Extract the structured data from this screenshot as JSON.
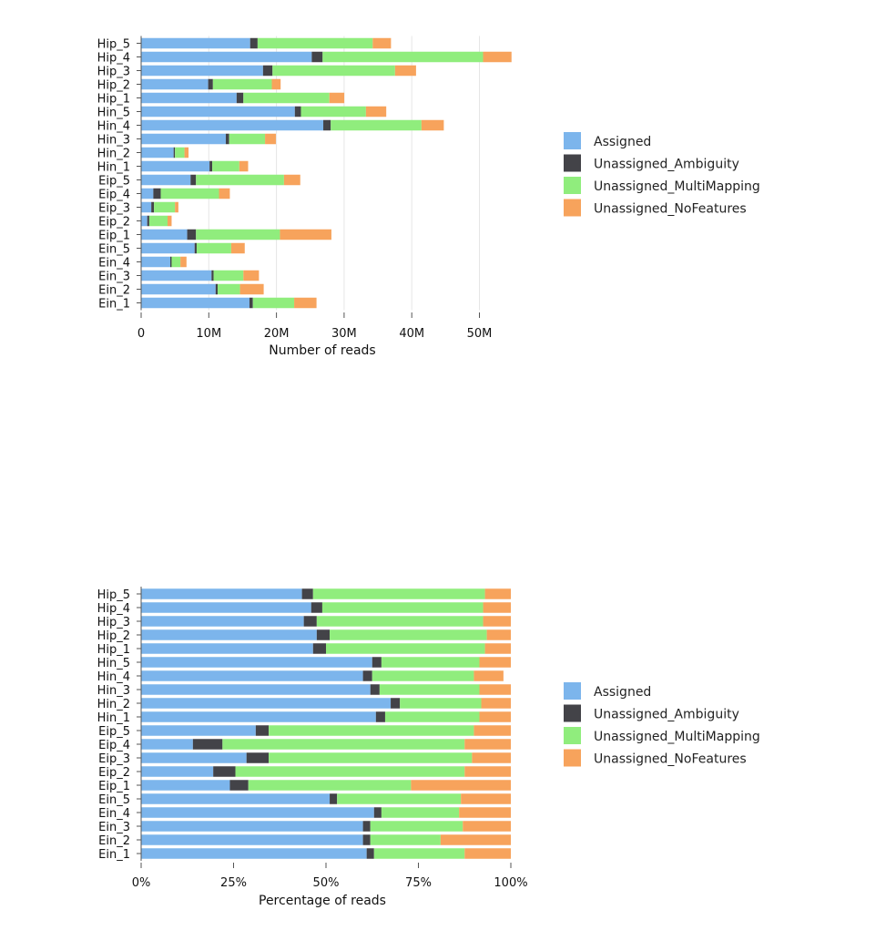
{
  "colors": {
    "Assigned": "#7cb5ec",
    "Unassigned_Ambiguity": "#434348",
    "Unassigned_MultiMapping": "#90ed7d",
    "Unassigned_NoFeatures": "#f7a35c",
    "grid": "#e6e6e6"
  },
  "chart_data": [
    {
      "type": "bar",
      "orientation": "horizontal",
      "stacked": true,
      "categories": [
        "Hip_5",
        "Hip_4",
        "Hip_3",
        "Hip_2",
        "Hip_1",
        "Hin_5",
        "Hin_4",
        "Hin_3",
        "Hin_2",
        "Hin_1",
        "Eip_5",
        "Eip_4",
        "Eip_3",
        "Eip_2",
        "Eip_1",
        "Ein_5",
        "Ein_4",
        "Ein_3",
        "Ein_2",
        "Ein_1"
      ],
      "series": [
        {
          "name": "Assigned",
          "values": [
            16.1,
            25.2,
            18.0,
            9.9,
            14.1,
            22.7,
            26.9,
            12.5,
            4.8,
            10.1,
            7.3,
            1.8,
            1.5,
            0.9,
            6.8,
            7.9,
            4.3,
            10.4,
            11.0,
            16.0
          ]
        },
        {
          "name": "Unassigned_Ambiguity",
          "values": [
            1.1,
            1.6,
            1.4,
            0.7,
            1.0,
            0.9,
            1.1,
            0.5,
            0.2,
            0.4,
            0.8,
            1.1,
            0.4,
            0.3,
            1.3,
            0.3,
            0.2,
            0.3,
            0.3,
            0.5
          ]
        },
        {
          "name": "Unassigned_MultiMapping",
          "values": [
            17.0,
            23.7,
            18.1,
            8.7,
            12.7,
            9.6,
            13.4,
            5.3,
            1.4,
            4.0,
            13.0,
            8.6,
            3.1,
            2.7,
            12.4,
            5.1,
            1.3,
            4.4,
            3.3,
            6.1
          ]
        },
        {
          "name": "Unassigned_NoFeatures",
          "values": [
            2.7,
            4.2,
            3.1,
            1.3,
            2.2,
            3.0,
            3.3,
            1.6,
            0.6,
            1.3,
            2.4,
            1.6,
            0.5,
            0.6,
            7.6,
            2.0,
            0.9,
            2.3,
            3.5,
            3.3
          ]
        }
      ],
      "xticks": [
        "0",
        "10M",
        "20M",
        "30M",
        "40M",
        "50M"
      ],
      "xlim": [
        0,
        54.6
      ],
      "xlabel": "Number of reads",
      "grid": true,
      "legend": "right"
    },
    {
      "type": "bar",
      "orientation": "horizontal",
      "stacked": true,
      "percent": true,
      "categories": [
        "Hip_5",
        "Hip_4",
        "Hip_3",
        "Hip_2",
        "Hip_1",
        "Hin_5",
        "Hin_4",
        "Hin_3",
        "Hin_2",
        "Hin_1",
        "Eip_5",
        "Eip_4",
        "Eip_3",
        "Eip_2",
        "Eip_1",
        "Ein_5",
        "Ein_4",
        "Ein_3",
        "Ein_2",
        "Ein_1"
      ],
      "series": [
        {
          "name": "Assigned",
          "values": [
            43.5,
            46.0,
            44.0,
            47.5,
            46.5,
            62.5,
            60.0,
            62.0,
            67.5,
            63.5,
            31.0,
            14.0,
            28.5,
            19.5,
            24.0,
            51.0,
            63.0,
            60.0,
            60.0,
            61.0
          ]
        },
        {
          "name": "Unassigned_Ambiguity",
          "values": [
            3.0,
            3.0,
            3.5,
            3.5,
            3.5,
            2.5,
            2.5,
            2.5,
            2.5,
            2.5,
            3.5,
            8.0,
            6.0,
            6.0,
            5.0,
            2.0,
            2.0,
            2.0,
            2.0,
            2.0
          ]
        },
        {
          "name": "Unassigned_MultiMapping",
          "values": [
            46.5,
            43.5,
            45.0,
            42.5,
            43.0,
            26.5,
            27.5,
            27.0,
            22.0,
            25.5,
            55.5,
            65.5,
            55.0,
            62.0,
            44.0,
            33.5,
            21.0,
            25.0,
            19.0,
            24.5
          ]
        },
        {
          "name": "Unassigned_NoFeatures",
          "values": [
            7.0,
            7.5,
            7.5,
            6.5,
            7.0,
            8.5,
            8.0,
            8.5,
            8.0,
            8.5,
            10.0,
            12.5,
            10.5,
            12.5,
            27.0,
            13.5,
            14.0,
            13.0,
            19.0,
            12.5
          ]
        }
      ],
      "xticks": [
        "0%",
        "25%",
        "50%",
        "75%",
        "100%"
      ],
      "xlim": [
        0,
        100
      ],
      "xlabel": "Percentage of reads",
      "grid": false,
      "legend": "right"
    }
  ]
}
